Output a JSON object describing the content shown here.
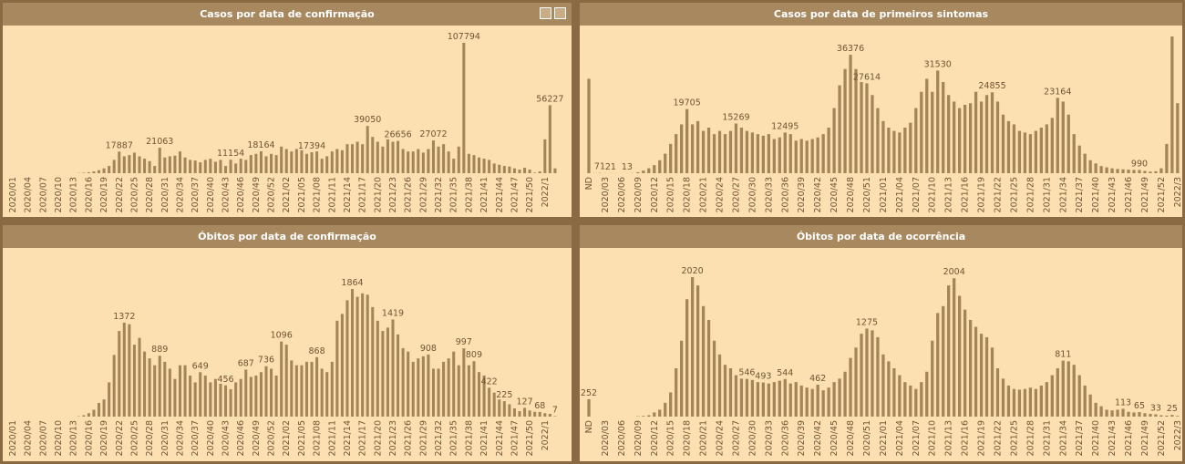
{
  "chart_data": [
    {
      "type": "bar",
      "title": "Casos por data de confirmação",
      "color": "#a4855a",
      "categories": [
        "2020/01",
        null,
        null,
        "2020/04",
        null,
        null,
        "2020/07",
        null,
        null,
        "2020/10",
        null,
        null,
        "2020/13",
        null,
        null,
        "2020/16",
        null,
        null,
        "2020/19",
        null,
        null,
        "2020/22",
        null,
        null,
        "2020/25",
        null,
        null,
        "2020/28",
        null,
        null,
        "2020/31",
        null,
        null,
        "2020/34",
        null,
        null,
        "2020/37",
        null,
        null,
        "2020/40",
        null,
        null,
        "2020/43",
        null,
        null,
        "2020/46",
        null,
        null,
        "2020/49",
        null,
        null,
        "2020/52",
        null,
        null,
        "2021/02",
        null,
        null,
        "2021/05",
        null,
        null,
        "2021/08",
        null,
        null,
        "2021/11",
        null,
        null,
        "2021/14",
        null,
        null,
        "2021/17",
        null,
        null,
        "2021/20",
        null,
        null,
        "2021/23",
        null,
        null,
        "2021/26",
        null,
        null,
        "2021/29",
        null,
        null,
        "2021/32",
        null,
        null,
        "2021/35",
        null,
        null,
        "2021/38",
        null,
        null,
        "2021/41",
        null,
        null,
        "2021/44",
        null,
        null,
        "2021/47",
        null,
        null,
        "2021/50",
        null,
        null,
        "2022/1",
        null,
        null
      ],
      "values": [
        0,
        0,
        0,
        0,
        0,
        0,
        0,
        0,
        0,
        0,
        0,
        0,
        50,
        200,
        400,
        800,
        1500,
        2500,
        4000,
        6000,
        11000,
        17887,
        14000,
        15000,
        17000,
        14000,
        12000,
        10000,
        6000,
        21063,
        13000,
        14000,
        14500,
        18000,
        13000,
        11000,
        10500,
        9000,
        11000,
        12000,
        9500,
        11000,
        6000,
        11154,
        8000,
        12000,
        11000,
        15000,
        16000,
        18164,
        14000,
        16000,
        15000,
        22000,
        20000,
        18000,
        20000,
        19000,
        16000,
        17394,
        18000,
        12000,
        14000,
        18000,
        20000,
        19000,
        24000,
        24000,
        26000,
        24000,
        39050,
        30000,
        26000,
        22000,
        28000,
        26000,
        26656,
        20000,
        18000,
        18000,
        20000,
        17000,
        20000,
        27072,
        22000,
        24000,
        18000,
        12000,
        22000,
        107794,
        16000,
        15000,
        13000,
        12000,
        11000,
        8000,
        7000,
        6000,
        5500,
        4000,
        3000,
        4500,
        3000,
        500,
        1500,
        28000,
        56227,
        4000
      ],
      "value_labels": [
        null,
        null,
        null,
        null,
        null,
        null,
        null,
        null,
        null,
        null,
        null,
        null,
        null,
        null,
        null,
        null,
        null,
        null,
        null,
        null,
        null,
        17887,
        null,
        null,
        null,
        null,
        null,
        null,
        null,
        21063,
        null,
        null,
        null,
        null,
        null,
        null,
        null,
        null,
        null,
        null,
        null,
        null,
        null,
        11154,
        null,
        null,
        null,
        null,
        null,
        18164,
        null,
        null,
        null,
        null,
        null,
        null,
        null,
        null,
        null,
        17394,
        null,
        null,
        null,
        null,
        null,
        null,
        null,
        null,
        null,
        null,
        39050,
        null,
        null,
        null,
        null,
        null,
        26656,
        null,
        null,
        null,
        null,
        null,
        null,
        27072,
        null,
        null,
        null,
        null,
        null,
        107794,
        null,
        null,
        null,
        null,
        null,
        null,
        null,
        null,
        null,
        null,
        null,
        null,
        null,
        null,
        null,
        null,
        56227,
        null
      ]
    },
    {
      "type": "bar",
      "title": "Casos por data de primeiros sintomas",
      "color": "#a4855a",
      "categories": [
        "ND",
        null,
        null,
        "2020/03",
        null,
        null,
        "2020/06",
        null,
        null,
        "2020/09",
        null,
        null,
        "2020/12",
        null,
        null,
        "2020/15",
        null,
        null,
        "2020/18",
        null,
        null,
        "2020/21",
        null,
        null,
        "2020/24",
        null,
        null,
        "2020/27",
        null,
        null,
        "2020/30",
        null,
        null,
        "2020/33",
        null,
        null,
        "2020/36",
        null,
        null,
        "2020/39",
        null,
        null,
        "2020/42",
        null,
        null,
        "2020/45",
        null,
        null,
        "2020/48",
        null,
        null,
        "2020/51",
        null,
        null,
        "2021/01",
        null,
        null,
        "2021/04",
        null,
        null,
        "2021/07",
        null,
        null,
        "2021/10",
        null,
        null,
        "2021/13",
        null,
        null,
        "2021/16",
        null,
        null,
        "2021/19",
        null,
        null,
        "2021/22",
        null,
        null,
        "2021/25",
        null,
        null,
        "2021/28",
        null,
        null,
        "2021/31",
        null,
        null,
        "2021/34",
        null,
        null,
        "2021/37",
        null,
        null,
        "2021/40",
        null,
        null,
        "2021/43",
        null,
        null,
        "2021/46",
        null,
        null,
        "2021/49",
        null,
        null,
        "2021/52",
        null,
        null,
        "2022/3"
      ],
      "values": [
        29000,
        30,
        71,
        40,
        21,
        15,
        10,
        13,
        50,
        300,
        800,
        1500,
        2500,
        4000,
        6000,
        9000,
        12000,
        15000,
        19705,
        15000,
        16000,
        13000,
        14000,
        12000,
        13000,
        12000,
        13000,
        15269,
        14000,
        13000,
        12500,
        12000,
        11500,
        12000,
        10500,
        11000,
        12495,
        12000,
        10000,
        10500,
        10000,
        10500,
        11000,
        12000,
        14000,
        20000,
        27000,
        32000,
        36376,
        32000,
        28000,
        27614,
        24000,
        20000,
        16000,
        14000,
        13000,
        12500,
        14000,
        15500,
        20000,
        25000,
        29000,
        25000,
        31530,
        28000,
        24000,
        22000,
        20000,
        21000,
        21500,
        25000,
        22000,
        24000,
        24855,
        22000,
        18000,
        16000,
        15000,
        13000,
        12500,
        12000,
        13000,
        14000,
        15000,
        17000,
        23164,
        22000,
        18000,
        12000,
        8500,
        6000,
        4000,
        3000,
        2200,
        1800,
        1500,
        1300,
        1200,
        1100,
        1000,
        990,
        700,
        500,
        600,
        1500,
        9000,
        42000,
        21500
      ],
      "value_labels": [
        null,
        null,
        71,
        null,
        21,
        null,
        null,
        13,
        null,
        null,
        null,
        null,
        null,
        null,
        null,
        null,
        null,
        null,
        19705,
        null,
        null,
        null,
        null,
        null,
        null,
        null,
        null,
        15269,
        null,
        null,
        null,
        null,
        null,
        null,
        null,
        null,
        12495,
        null,
        null,
        null,
        null,
        null,
        null,
        null,
        null,
        null,
        null,
        null,
        36376,
        null,
        null,
        27614,
        null,
        null,
        null,
        null,
        null,
        null,
        null,
        null,
        null,
        null,
        null,
        null,
        31530,
        null,
        null,
        null,
        null,
        null,
        null,
        null,
        null,
        null,
        24855,
        null,
        null,
        null,
        null,
        null,
        null,
        null,
        null,
        null,
        null,
        null,
        23164,
        null,
        null,
        null,
        null,
        null,
        null,
        null,
        null,
        null,
        null,
        null,
        null,
        null,
        null,
        990,
        null,
        null,
        null,
        null,
        null,
        null,
        null
      ]
    },
    {
      "type": "bar",
      "title": "Óbitos por data de confirmação",
      "color": "#a4855a",
      "categories": [
        "2020/01",
        null,
        null,
        "2020/04",
        null,
        null,
        "2020/07",
        null,
        null,
        "2020/10",
        null,
        null,
        "2020/13",
        null,
        null,
        "2020/16",
        null,
        null,
        "2020/19",
        null,
        null,
        "2020/22",
        null,
        null,
        "2020/25",
        null,
        null,
        "2020/28",
        null,
        null,
        "2020/31",
        null,
        null,
        "2020/34",
        null,
        null,
        "2020/37",
        null,
        null,
        "2020/40",
        null,
        null,
        "2020/43",
        null,
        null,
        "2020/46",
        null,
        null,
        "2020/49",
        null,
        null,
        "2020/52",
        null,
        null,
        "2021/02",
        null,
        null,
        "2021/05",
        null,
        null,
        "2021/08",
        null,
        null,
        "2021/11",
        null,
        null,
        "2021/14",
        null,
        null,
        "2021/17",
        null,
        null,
        "2021/20",
        null,
        null,
        "2021/23",
        null,
        null,
        "2021/26",
        null,
        null,
        "2021/29",
        null,
        null,
        "2021/32",
        null,
        null,
        "2021/35",
        null,
        null,
        "2021/38",
        null,
        null,
        "2021/41",
        null,
        null,
        "2021/44",
        null,
        null,
        "2021/47",
        null,
        null,
        "2021/50",
        null,
        null,
        "2022/1",
        null,
        null
      ],
      "values": [
        0,
        0,
        0,
        0,
        0,
        0,
        0,
        0,
        0,
        0,
        0,
        0,
        0,
        5,
        20,
        50,
        100,
        200,
        250,
        500,
        900,
        1250,
        1372,
        1350,
        1050,
        1150,
        950,
        850,
        750,
        889,
        800,
        700,
        550,
        750,
        750,
        600,
        500,
        649,
        600,
        500,
        550,
        480,
        456,
        400,
        500,
        550,
        687,
        580,
        600,
        650,
        736,
        700,
        600,
        1096,
        1050,
        820,
        750,
        750,
        800,
        800,
        868,
        700,
        650,
        800,
        1400,
        1500,
        1700,
        1864,
        1750,
        1800,
        1780,
        1600,
        1400,
        1250,
        1300,
        1419,
        1200,
        1000,
        950,
        800,
        850,
        880,
        908,
        700,
        700,
        800,
        850,
        950,
        750,
        997,
        750,
        809,
        650,
        600,
        422,
        350,
        250,
        225,
        180,
        120,
        80,
        127,
        90,
        70,
        68,
        50,
        40,
        7
      ],
      "value_labels": [
        null,
        null,
        null,
        null,
        null,
        null,
        null,
        null,
        null,
        null,
        null,
        null,
        null,
        null,
        null,
        null,
        null,
        null,
        null,
        null,
        null,
        null,
        1372,
        null,
        null,
        null,
        null,
        null,
        null,
        889,
        null,
        null,
        null,
        null,
        null,
        null,
        null,
        649,
        null,
        null,
        null,
        null,
        456,
        null,
        null,
        null,
        687,
        null,
        null,
        null,
        736,
        null,
        null,
        1096,
        null,
        null,
        null,
        null,
        null,
        null,
        868,
        null,
        null,
        null,
        null,
        null,
        null,
        1864,
        null,
        null,
        null,
        null,
        null,
        null,
        null,
        1419,
        null,
        null,
        null,
        null,
        null,
        null,
        908,
        null,
        null,
        null,
        null,
        null,
        null,
        997,
        null,
        809,
        null,
        null,
        422,
        null,
        null,
        225,
        null,
        null,
        null,
        127,
        null,
        null,
        68,
        null,
        null,
        7
      ]
    },
    {
      "type": "bar",
      "title": "Óbitos por data de ocorrência",
      "color": "#a4855a",
      "categories": [
        "ND",
        null,
        null,
        "2020/03",
        null,
        null,
        "2020/06",
        null,
        null,
        "2020/09",
        null,
        null,
        "2020/12",
        null,
        null,
        "2020/15",
        null,
        null,
        "2020/18",
        null,
        null,
        "2020/21",
        null,
        null,
        "2020/24",
        null,
        null,
        "2020/27",
        null,
        null,
        "2020/30",
        null,
        null,
        "2020/33",
        null,
        null,
        "2020/36",
        null,
        null,
        "2020/39",
        null,
        null,
        "2020/42",
        null,
        null,
        "2020/45",
        null,
        null,
        "2020/48",
        null,
        null,
        "2020/51",
        null,
        null,
        "2021/01",
        null,
        null,
        "2021/04",
        null,
        null,
        "2021/07",
        null,
        null,
        "2021/10",
        null,
        null,
        "2021/13",
        null,
        null,
        "2021/16",
        null,
        null,
        "2021/19",
        null,
        null,
        "2021/22",
        null,
        null,
        "2021/25",
        null,
        null,
        "2021/28",
        null,
        null,
        "2021/31",
        null,
        null,
        "2021/34",
        null,
        null,
        "2021/37",
        null,
        null,
        "2021/40",
        null,
        null,
        "2021/43",
        null,
        null,
        "2021/46",
        null,
        null,
        "2021/49",
        null,
        null,
        "2021/52",
        null,
        null,
        "2022/3"
      ],
      "values": [
        252,
        0,
        0,
        0,
        0,
        0,
        0,
        0,
        0,
        5,
        10,
        20,
        60,
        100,
        200,
        350,
        700,
        1100,
        1700,
        2020,
        1900,
        1600,
        1400,
        1100,
        900,
        750,
        700,
        600,
        550,
        546,
        530,
        500,
        493,
        480,
        500,
        520,
        544,
        480,
        500,
        450,
        420,
        400,
        462,
        380,
        420,
        500,
        550,
        650,
        850,
        1000,
        1200,
        1275,
        1250,
        1150,
        900,
        800,
        700,
        600,
        500,
        450,
        400,
        500,
        650,
        1100,
        1500,
        1600,
        1900,
        2004,
        1750,
        1550,
        1400,
        1300,
        1200,
        1150,
        1000,
        700,
        550,
        450,
        400,
        390,
        400,
        420,
        400,
        450,
        500,
        600,
        700,
        811,
        800,
        750,
        600,
        450,
        320,
        200,
        150,
        100,
        90,
        100,
        113,
        70,
        60,
        65,
        50,
        40,
        33,
        20,
        15,
        25,
        10
      ],
      "value_labels": [
        252,
        null,
        null,
        null,
        null,
        null,
        null,
        null,
        null,
        null,
        null,
        null,
        null,
        null,
        null,
        null,
        null,
        null,
        null,
        2020,
        null,
        null,
        null,
        null,
        null,
        null,
        null,
        null,
        null,
        546,
        null,
        null,
        493,
        null,
        null,
        null,
        544,
        null,
        null,
        null,
        null,
        null,
        462,
        null,
        null,
        null,
        null,
        null,
        null,
        null,
        null,
        1275,
        null,
        null,
        null,
        null,
        null,
        null,
        null,
        null,
        null,
        null,
        null,
        null,
        null,
        null,
        null,
        2004,
        null,
        null,
        null,
        null,
        null,
        null,
        null,
        null,
        null,
        null,
        null,
        null,
        null,
        null,
        null,
        null,
        null,
        null,
        null,
        811,
        null,
        null,
        null,
        null,
        null,
        null,
        null,
        null,
        null,
        null,
        113,
        null,
        null,
        65,
        null,
        null,
        33,
        null,
        null,
        25,
        null
      ]
    }
  ]
}
